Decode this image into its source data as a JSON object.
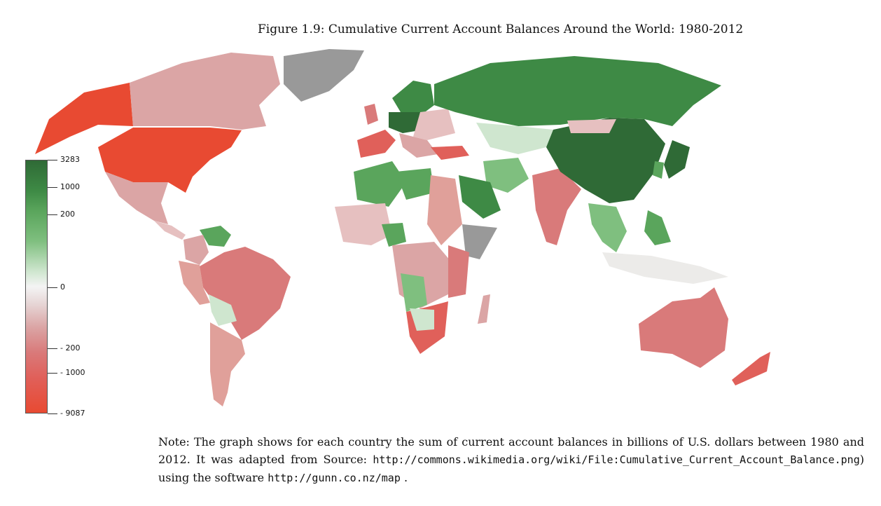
{
  "title": "Figure 1.9: Cumulative Current Account Balances Around the World: 1980-2012",
  "legend": {
    "ticks": [
      "3283",
      "1000",
      "200",
      "0",
      "- 200",
      "- 1000",
      "- 9087"
    ],
    "colors": {
      "max_positive": "#2f6a36",
      "positive": "#5aa55c",
      "neutral": "#f4f4f4",
      "negative": "#d97a7a",
      "max_negative": "#e84a32",
      "no_data": "#999999"
    }
  },
  "note": {
    "text_1": "Note: The graph shows for each country the sum of current account balances in billions of U.S. dollars between 1980 and 2012. It was adapted from Source:",
    "source_url": "http://commons.wikimedia.org/wiki/File:Cumulative_Current_Account_Balance.png",
    "text_2": ") using the software",
    "software_url": "http://gunn.co.nz/map",
    "text_3": "."
  }
}
